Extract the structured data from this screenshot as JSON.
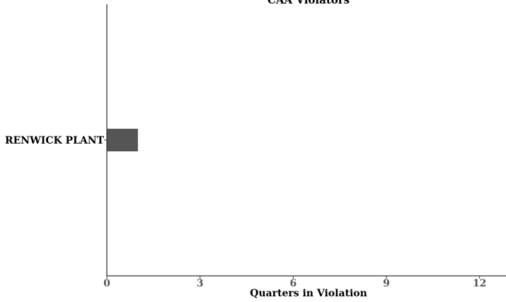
{
  "chart_data": {
    "type": "bar",
    "orientation": "horizontal",
    "title": "CAA Violators",
    "xlabel": "Quarters in Violation",
    "ylabel": "",
    "categories": [
      "RENWICK PLANT"
    ],
    "values": [
      1
    ],
    "xlim": [
      0,
      12.85
    ],
    "xticks": [
      0,
      3,
      6,
      9,
      12
    ],
    "grid": false,
    "colors": {
      "bar": "#555555",
      "axis": "#333333",
      "tick_label": "#555555",
      "text": "#000000"
    }
  }
}
